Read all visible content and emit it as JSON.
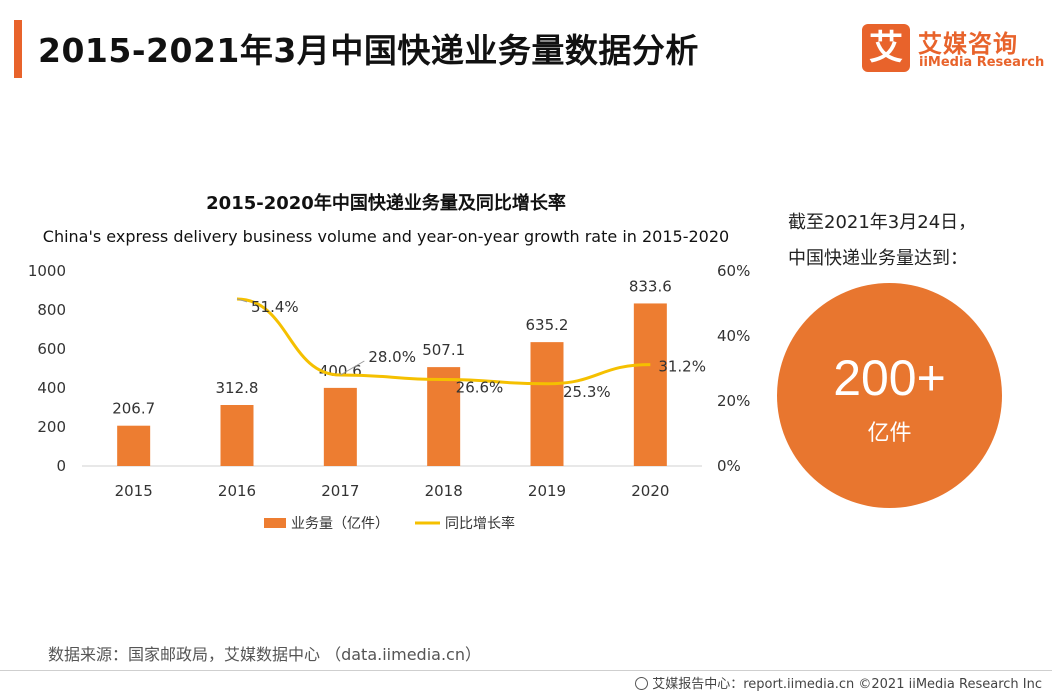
{
  "header": {
    "title": "2015-2021年3月中国快递业务量数据分析",
    "accent_color": "#e8632b"
  },
  "logo": {
    "mark": "艾",
    "cn": "艾媒咨询",
    "en": "iiMedia Research"
  },
  "side_panel": {
    "line1": "截至2021年3月24日，",
    "line2": "中国快递业务量达到：",
    "big_value": "200+",
    "unit": "亿件",
    "circle_color": "#e8762f"
  },
  "source": "数据来源：国家邮政局，艾媒数据中心 （data.iimedia.cn）",
  "footer": {
    "text": "艾媒报告中心：report.iimedia.cn ©2021 iiMedia Research Inc",
    "icon": "globe-icon"
  },
  "chart_data": {
    "type": "bar",
    "title": "2015-2020年中国快递业务量及同比增长率",
    "subtitle": "China's express delivery business volume and year-on-year growth rate in 2015-2020",
    "categories": [
      "2015",
      "2016",
      "2017",
      "2018",
      "2019",
      "2020"
    ],
    "series": [
      {
        "name": "业务量（亿件）",
        "type": "bar",
        "axis": "left",
        "color": "#ed7d31",
        "values": [
          206.7,
          312.8,
          400.6,
          507.1,
          635.2,
          833.6
        ],
        "labels": [
          "206.7",
          "312.8",
          "400.6",
          "507.1",
          "635.2",
          "833.6"
        ]
      },
      {
        "name": "同比增长率",
        "type": "line",
        "axis": "right",
        "color": "#f5c000",
        "values": [
          null,
          51.4,
          28.0,
          26.6,
          25.3,
          31.2
        ],
        "labels": [
          "",
          "51.4%",
          "28.0%",
          "26.6%",
          "25.3%",
          "31.2%"
        ]
      }
    ],
    "y_left": {
      "min": 0,
      "max": 1000,
      "ticks": [
        "0",
        "200",
        "400",
        "600",
        "800",
        "1000"
      ]
    },
    "y_right": {
      "min": 0,
      "max": 60,
      "ticks": [
        "0%",
        "20%",
        "40%",
        "60%"
      ]
    },
    "xlabel": "",
    "ylabel": "",
    "legend_position": "bottom-center",
    "grid": false
  }
}
